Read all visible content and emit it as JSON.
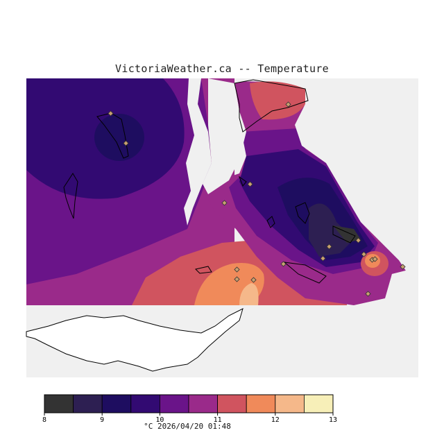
{
  "title": "VictoriaWeather.ca -- Temperature",
  "colorbar": {
    "ticks": [
      "8",
      "9",
      "10",
      "11",
      "12",
      "13"
    ],
    "colors": [
      "#333333",
      "#2d1f52",
      "#1e0d60",
      "#320a72",
      "#6a1489",
      "#9a2a8a",
      "#d0545f",
      "#f08a5a",
      "#f5b88a",
      "#f7efb8"
    ],
    "footer": "°C  2026/04/20 01:48"
  },
  "map": {
    "background_color": "#f0f0f0",
    "land_color": "#ffffff",
    "station_marker_color": "#c8a070"
  }
}
